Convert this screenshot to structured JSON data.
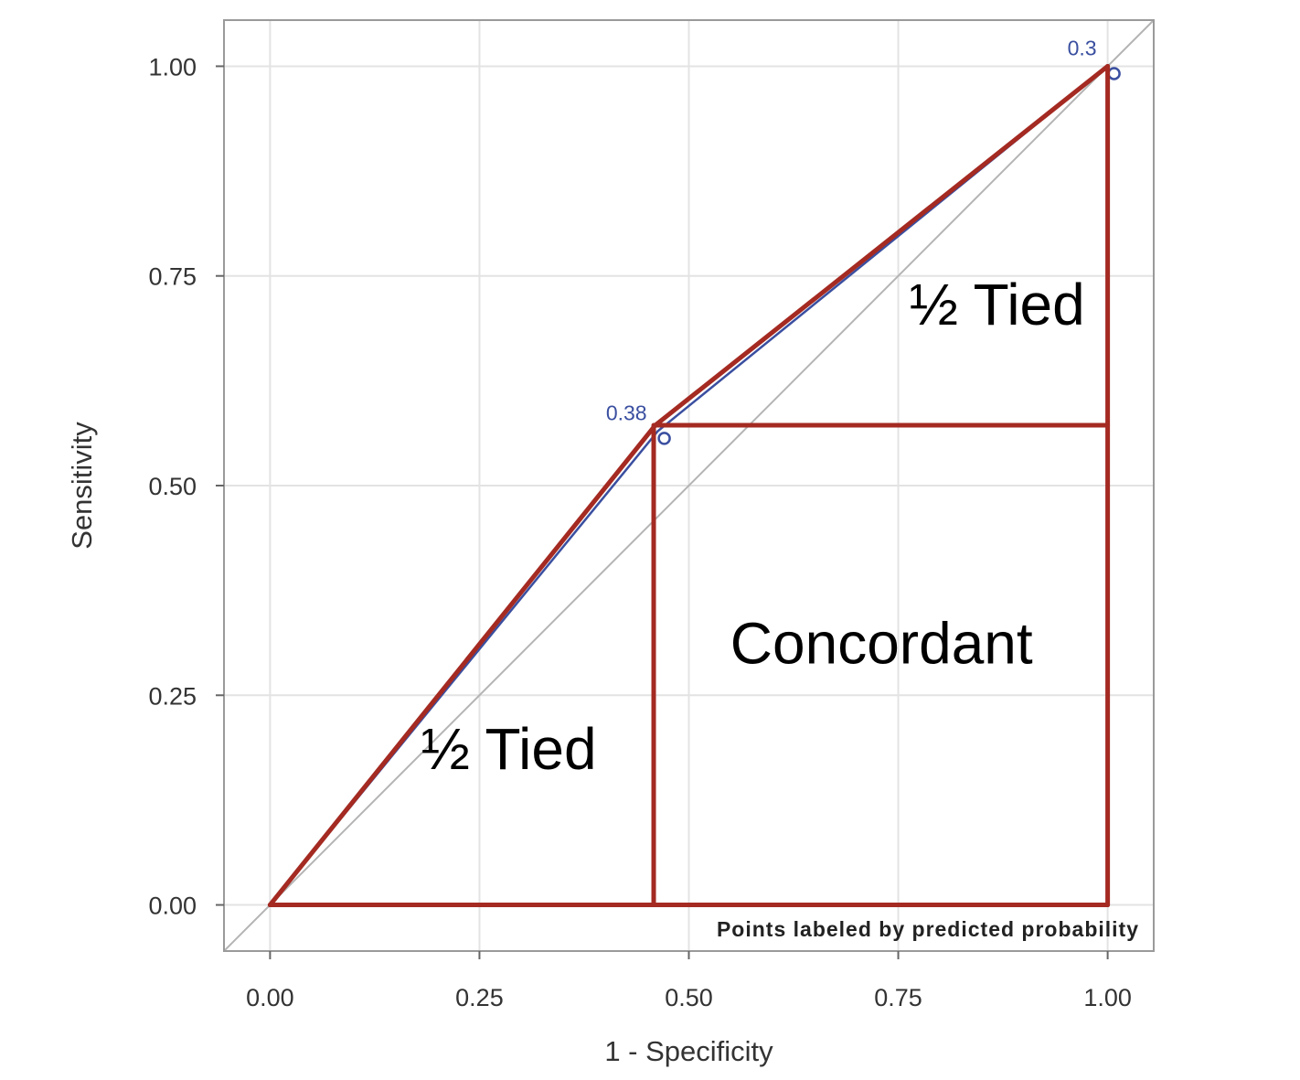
{
  "chart_data": {
    "type": "line",
    "xlabel": "1 - Specificity",
    "ylabel": "Sensitivity",
    "xlim": [
      -0.055,
      1.055
    ],
    "ylim": [
      -0.055,
      1.055
    ],
    "x_ticks": [
      "0.00",
      "0.25",
      "0.50",
      "0.75",
      "1.00"
    ],
    "y_ticks": [
      "0.00",
      "0.25",
      "0.50",
      "0.75",
      "1.00"
    ],
    "grid": true,
    "series": [
      {
        "x": [
          0,
          0.463,
          1.0
        ],
        "y": [
          0,
          0.565,
          1.0
        ],
        "point_labels": [
          "",
          "0.38",
          "0.3"
        ],
        "marker": "circle",
        "color": "#3a4fa0"
      }
    ],
    "reference_line": {
      "x": [
        -0.055,
        1.055
      ],
      "y": [
        -0.055,
        1.055
      ],
      "color": "#b4b4b4"
    },
    "overlay": {
      "color": "#a42a22",
      "segments": [
        {
          "x": [
            0.0,
            0.46
          ],
          "y": [
            0.0,
            0.572
          ]
        },
        {
          "x": [
            0.46,
            1.0
          ],
          "y": [
            0.572,
            1.0
          ]
        },
        {
          "x": [
            0.0,
            1.0
          ],
          "y": [
            0.0,
            0.0
          ]
        },
        {
          "x": [
            0.458,
            0.458
          ],
          "y": [
            0.0,
            0.572
          ]
        },
        {
          "x": [
            0.46,
            1.0
          ],
          "y": [
            0.572,
            0.572
          ]
        },
        {
          "x": [
            1.0,
            1.0
          ],
          "y": [
            0.0,
            1.0
          ]
        }
      ],
      "regions": [
        {
          "text": "½ Tied",
          "x": 0.285,
          "y": 0.162
        },
        {
          "text": "Concordant",
          "x": 0.73,
          "y": 0.288
        },
        {
          "text": "½ Tied",
          "x": 0.868,
          "y": 0.692
        }
      ]
    },
    "footnote": "Points labeled by predicted probability"
  }
}
